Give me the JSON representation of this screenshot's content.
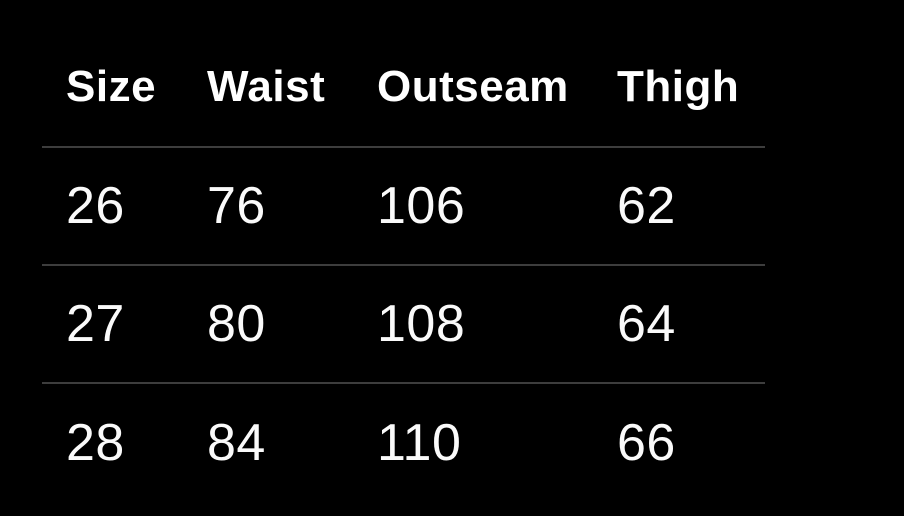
{
  "table": {
    "columns": [
      {
        "key": "size",
        "label": "Size"
      },
      {
        "key": "waist",
        "label": "Waist"
      },
      {
        "key": "outseam",
        "label": "Outseam"
      },
      {
        "key": "thigh",
        "label": "Thigh"
      }
    ],
    "rows": [
      [
        "26",
        "76",
        "106",
        "62"
      ],
      [
        "27",
        "80",
        "108",
        "64"
      ],
      [
        "28",
        "84",
        "110",
        "66"
      ]
    ]
  },
  "colors": {
    "background": "#000000",
    "header_text": "#ffffff",
    "cell_text": "#fafafa",
    "divider": "#3d3d3d"
  }
}
